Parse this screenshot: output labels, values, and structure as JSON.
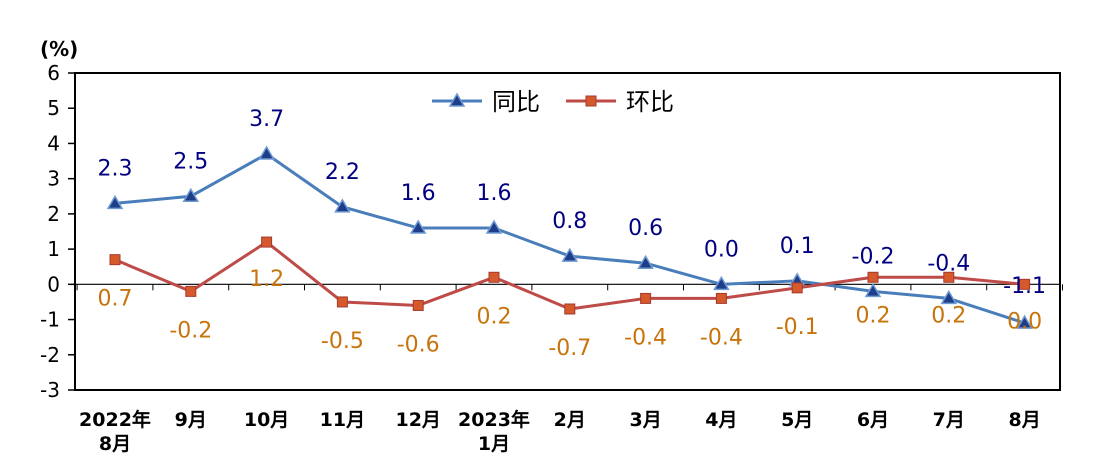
{
  "chart_data": {
    "type": "line",
    "y_unit": "(%)",
    "ylim": [
      -3,
      6
    ],
    "yticks": [
      "6",
      "5",
      "4",
      "3",
      "2",
      "1",
      "0",
      "-1",
      "-2",
      "-3"
    ],
    "categories": [
      [
        "2022年",
        "8月"
      ],
      [
        "9月"
      ],
      [
        "10月"
      ],
      [
        "11月"
      ],
      [
        "12月"
      ],
      [
        "2023年",
        "1月"
      ],
      [
        "2月"
      ],
      [
        "3月"
      ],
      [
        "4月"
      ],
      [
        "5月"
      ],
      [
        "6月"
      ],
      [
        "7月"
      ],
      [
        "8月"
      ]
    ],
    "legend_position": "top-center",
    "series": [
      {
        "name": "同比",
        "color": "#4a7ebb",
        "label_color": "#000080",
        "marker": "triangle",
        "values": [
          2.3,
          2.5,
          3.7,
          2.2,
          1.6,
          1.6,
          0.8,
          0.6,
          0.0,
          0.1,
          -0.2,
          -0.4,
          -1.1
        ],
        "labels": [
          "2.3",
          "2.5",
          "3.7",
          "2.2",
          "1.6",
          "1.6",
          "0.8",
          "0.6",
          "0.0",
          "0.1",
          "-0.2",
          "-0.4",
          "-1.1"
        ]
      },
      {
        "name": "环比",
        "color": "#be4b48",
        "label_color": "#c8740c",
        "marker": "square",
        "values": [
          0.7,
          -0.2,
          1.2,
          -0.5,
          -0.6,
          0.2,
          -0.7,
          -0.4,
          -0.4,
          -0.1,
          0.2,
          0.2,
          0.0
        ],
        "labels": [
          "0.7",
          "-0.2",
          "1.2",
          "-0.5",
          "-0.6",
          "0.2",
          "-0.7",
          "-0.4",
          "-0.4",
          "-0.1",
          "0.2",
          "0.2",
          "0.0"
        ]
      }
    ]
  }
}
